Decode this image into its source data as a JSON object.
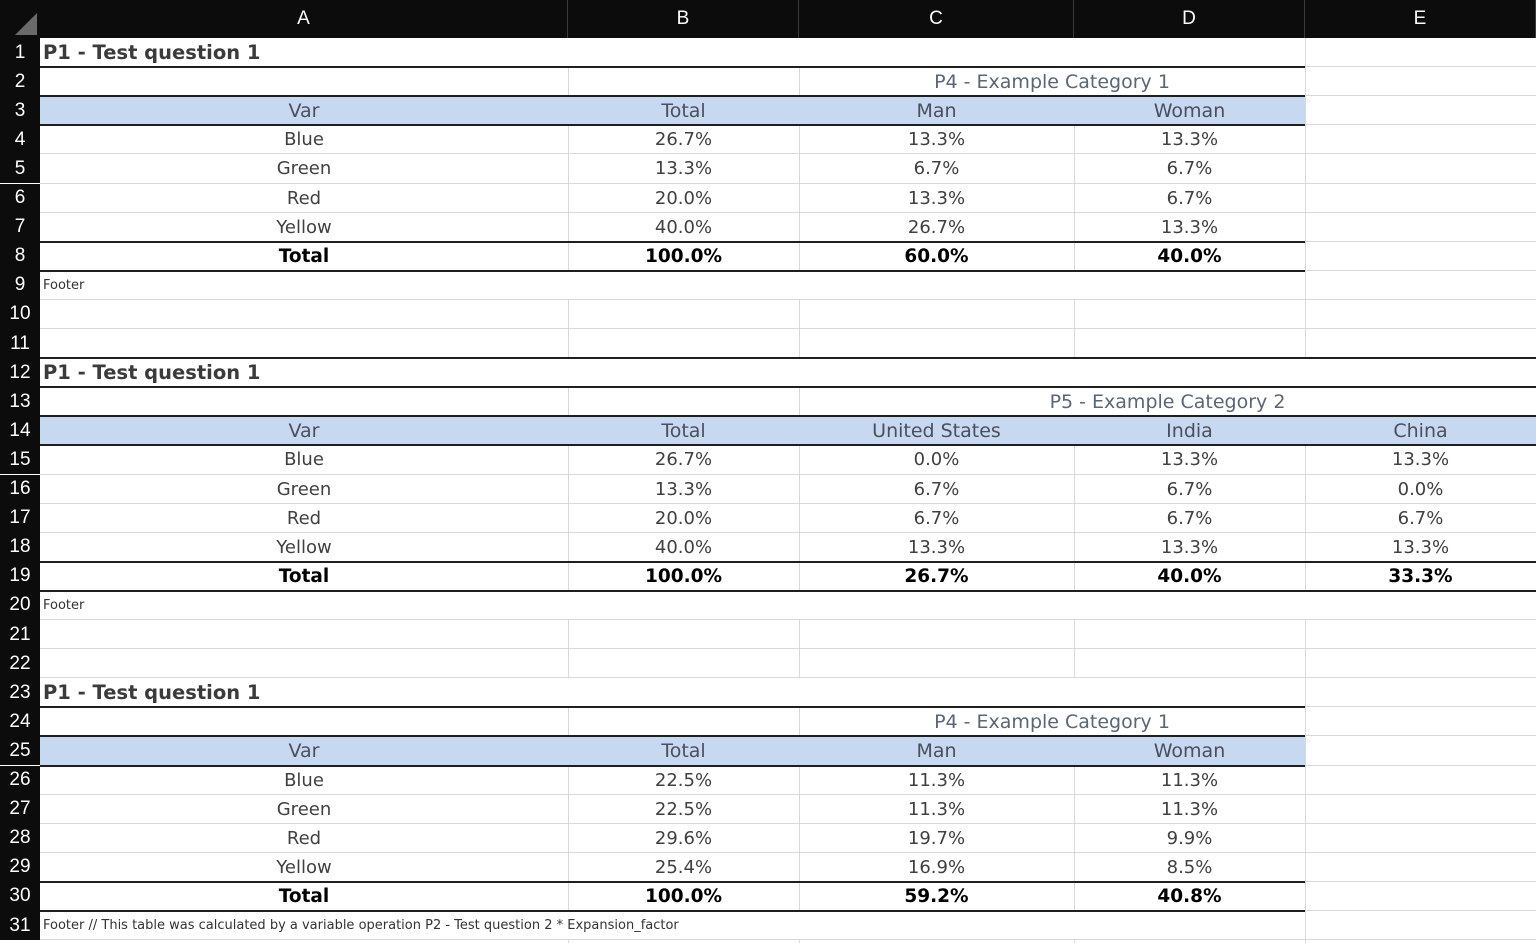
{
  "sheet": {
    "columns": [
      "A",
      "B",
      "C",
      "D",
      "E"
    ],
    "rows": [
      "1",
      "2",
      "3",
      "4",
      "5",
      "6",
      "7",
      "8",
      "9",
      "10",
      "11",
      "12",
      "13",
      "14",
      "15",
      "16",
      "17",
      "18",
      "19",
      "20",
      "21",
      "22",
      "23",
      "24",
      "25",
      "26",
      "27",
      "28",
      "29",
      "30",
      "31"
    ]
  },
  "tables": [
    {
      "title": "P1 - Test question 1",
      "category": "P4 - Example Category 1",
      "headers": [
        "Var",
        "Total",
        "Man",
        "Woman"
      ],
      "rows": [
        [
          "Blue",
          "26.7%",
          "13.3%",
          "13.3%"
        ],
        [
          "Green",
          "13.3%",
          "6.7%",
          "6.7%"
        ],
        [
          "Red",
          "20.0%",
          "13.3%",
          "6.7%"
        ],
        [
          "Yellow",
          "40.0%",
          "26.7%",
          "13.3%"
        ]
      ],
      "total": [
        "Total",
        "100.0%",
        "60.0%",
        "40.0%"
      ],
      "footer": "Footer"
    },
    {
      "title": "P1 - Test question 1",
      "category": "P5 - Example Category 2",
      "headers": [
        "Var",
        "Total",
        "United States",
        "India",
        "China"
      ],
      "rows": [
        [
          "Blue",
          "26.7%",
          "0.0%",
          "13.3%",
          "13.3%"
        ],
        [
          "Green",
          "13.3%",
          "6.7%",
          "6.7%",
          "0.0%"
        ],
        [
          "Red",
          "20.0%",
          "6.7%",
          "6.7%",
          "6.7%"
        ],
        [
          "Yellow",
          "40.0%",
          "13.3%",
          "13.3%",
          "13.3%"
        ]
      ],
      "total": [
        "Total",
        "100.0%",
        "26.7%",
        "40.0%",
        "33.3%"
      ],
      "footer": "Footer"
    },
    {
      "title": "P1 - Test question 1",
      "category": "P4 - Example Category 1",
      "headers": [
        "Var",
        "Total",
        "Man",
        "Woman"
      ],
      "rows": [
        [
          "Blue",
          "22.5%",
          "11.3%",
          "11.3%"
        ],
        [
          "Green",
          "22.5%",
          "11.3%",
          "11.3%"
        ],
        [
          "Red",
          "29.6%",
          "19.7%",
          "9.9%"
        ],
        [
          "Yellow",
          "25.4%",
          "16.9%",
          "8.5%"
        ]
      ],
      "total": [
        "Total",
        "100.0%",
        "59.2%",
        "40.8%"
      ],
      "footer": "Footer // This table was calculated by a variable operation P2 - Test question 2 * Expansion_factor"
    }
  ],
  "colors": {
    "header_band": "#c6d9f1",
    "chrome_background": "#0c0c0c",
    "grid_line": "#d9d9d9",
    "border_line": "#1f1f1f"
  }
}
